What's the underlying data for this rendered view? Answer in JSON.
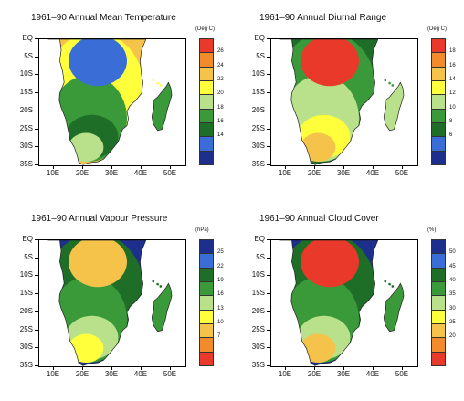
{
  "lat_labels": [
    "EQ",
    "5S",
    "10S",
    "15S",
    "20S",
    "25S",
    "30S",
    "35S"
  ],
  "lon_labels": [
    "10E",
    "20E",
    "30E",
    "40E",
    "50E"
  ],
  "panels": [
    {
      "title": "1961–90 Annual Mean Temperature",
      "unit": "(Deg C)",
      "labels": [
        "26",
        "24",
        "22",
        "20",
        "18",
        "16",
        "14"
      ],
      "colors": [
        "#e8392a",
        "#f28c2a",
        "#f5c24a",
        "#ffff3c",
        "#b9e08a",
        "#3a9a3a",
        "#1e6e28",
        "#3a6ed6",
        "#1c2f8c"
      ],
      "fill_order": [
        2,
        3,
        5,
        6,
        4,
        7
      ]
    },
    {
      "title": "1961–90 Annual Diurnal Range",
      "unit": "(Deg C)",
      "labels": [
        "18",
        "16",
        "14",
        "12",
        "10",
        "8",
        "6"
      ],
      "colors": [
        "#e8392a",
        "#f28c2a",
        "#f5c24a",
        "#ffff3c",
        "#b9e08a",
        "#3a9a3a",
        "#1e6e28",
        "#3a6ed6",
        "#1c2f8c"
      ],
      "fill_order": [
        6,
        5,
        4,
        3,
        2,
        0
      ]
    },
    {
      "title": "1961–90 Annual Vapour Pressure",
      "unit": "(hPa)",
      "labels": [
        "25",
        "22",
        "19",
        "16",
        "13",
        "10",
        "7"
      ],
      "colors": [
        "#1c2f8c",
        "#3a6ed6",
        "#1e6e28",
        "#3a9a3a",
        "#b9e08a",
        "#ffff3c",
        "#f5c24a",
        "#f28c2a",
        "#e8392a"
      ],
      "fill_order": [
        0,
        2,
        3,
        4,
        5,
        6
      ]
    },
    {
      "title": "1961–90 Annual Cloud Cover",
      "unit": "(%)",
      "labels": [
        "50",
        "45",
        "40",
        "35",
        "30",
        "25",
        "20"
      ],
      "colors": [
        "#1c2f8c",
        "#3a6ed6",
        "#1e6e28",
        "#3a9a3a",
        "#b9e08a",
        "#ffff3c",
        "#f5c24a",
        "#f28c2a",
        "#e8392a"
      ],
      "fill_order": [
        0,
        2,
        3,
        4,
        6,
        8
      ]
    }
  ]
}
